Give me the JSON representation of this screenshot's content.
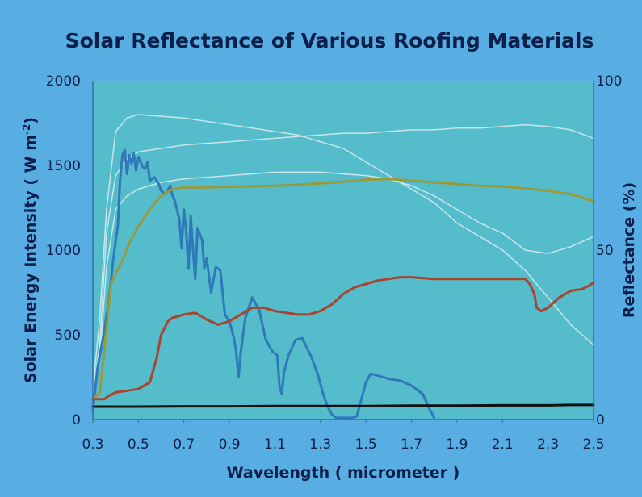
{
  "chart_data": {
    "type": "line",
    "title": "Solar Reflectance of Various Roofing Materials",
    "xlabel": "Wavelength ( micrometer )",
    "ylabel_left": "Solar Energy Intensity ( W m-2)",
    "ylabel_left_main": "Solar Energy Intensity ( W m",
    "ylabel_left_sup": "-2",
    "ylabel_left_end": ")",
    "ylabel_right": "Reflectance (%)",
    "xlim": [
      0.3,
      2.5
    ],
    "ylim_left": [
      0,
      2000
    ],
    "ylim_right": [
      0,
      100
    ],
    "x_ticks": [
      "0.3",
      "0.5",
      "0.7",
      "0.9",
      "1.1",
      "1.3",
      "1.5",
      "1.7",
      "1.9",
      "2.1",
      "2.3",
      "2.5"
    ],
    "y_left_ticks": [
      "0",
      "500",
      "1000",
      "1500",
      "2000"
    ],
    "y_right_ticks": [
      "0",
      "50",
      "100"
    ],
    "grid": false,
    "colors": {
      "background": "#58aee3",
      "plot_bg": "#55bccc",
      "title": "#0c1f4a",
      "solar": "#2f79b8",
      "green": "#9a9a3c",
      "brown": "#a8452c",
      "black": "#111111",
      "white": "#eef4f4"
    },
    "series": [
      {
        "axis": "left",
        "color": "#2f79b8",
        "x": [
          0.3,
          0.32,
          0.35,
          0.37,
          0.39,
          0.41,
          0.42,
          0.43,
          0.44,
          0.45,
          0.46,
          0.47,
          0.48,
          0.49,
          0.5,
          0.52,
          0.53,
          0.54,
          0.55,
          0.57,
          0.59,
          0.6,
          0.62,
          0.64,
          0.65,
          0.66,
          0.68,
          0.69,
          0.7,
          0.71,
          0.72,
          0.73,
          0.74,
          0.75,
          0.76,
          0.78,
          0.79,
          0.8,
          0.82,
          0.84,
          0.86,
          0.88,
          0.9,
          0.92,
          0.93,
          0.94,
          0.95,
          0.97,
          1.0,
          1.03,
          1.06,
          1.09,
          1.11,
          1.12,
          1.13,
          1.14,
          1.16,
          1.19,
          1.22,
          1.26,
          1.29,
          1.31,
          1.33,
          1.35,
          1.37,
          1.4,
          1.44,
          1.46,
          1.48,
          1.5,
          1.52,
          1.55,
          1.6,
          1.65,
          1.7,
          1.75,
          1.78,
          1.8
        ],
        "values": [
          50,
          300,
          520,
          700,
          950,
          1150,
          1420,
          1560,
          1590,
          1450,
          1560,
          1510,
          1570,
          1470,
          1550,
          1490,
          1480,
          1520,
          1410,
          1430,
          1390,
          1350,
          1330,
          1380,
          1320,
          1290,
          1180,
          1010,
          1240,
          1110,
          890,
          1200,
          1000,
          830,
          1130,
          1060,
          890,
          950,
          750,
          900,
          880,
          620,
          580,
          480,
          400,
          250,
          400,
          600,
          720,
          650,
          470,
          400,
          380,
          200,
          150,
          280,
          380,
          470,
          480,
          370,
          260,
          160,
          80,
          30,
          10,
          10,
          10,
          20,
          120,
          220,
          270,
          260,
          240,
          230,
          200,
          150,
          60,
          10
        ]
      },
      {
        "axis": "right",
        "color": "#9a9a3c",
        "x": [
          0.3,
          0.33,
          0.35,
          0.38,
          0.4,
          0.43,
          0.46,
          0.5,
          0.55,
          0.6,
          0.65,
          0.7,
          0.75,
          0.8,
          0.9,
          1.0,
          1.1,
          1.2,
          1.3,
          1.4,
          1.5,
          1.6,
          1.7,
          1.8,
          1.9,
          2.0,
          2.1,
          2.2,
          2.3,
          2.4,
          2.45,
          2.48,
          2.5
        ],
        "values": [
          6,
          8,
          20,
          40,
          43,
          47,
          52,
          57,
          62,
          66,
          68,
          68.5,
          68.5,
          68.5,
          68.7,
          68.8,
          69,
          69.3,
          69.7,
          70.2,
          70.8,
          71,
          70.5,
          70,
          69.5,
          69,
          68.8,
          68.2,
          67.5,
          66.5,
          65.5,
          64.8,
          64.5
        ]
      },
      {
        "axis": "right",
        "color": "#a8452c",
        "x": [
          0.3,
          0.35,
          0.37,
          0.4,
          0.45,
          0.5,
          0.55,
          0.58,
          0.6,
          0.63,
          0.65,
          0.7,
          0.75,
          0.8,
          0.85,
          0.9,
          0.95,
          1.0,
          1.05,
          1.1,
          1.15,
          1.2,
          1.25,
          1.3,
          1.35,
          1.4,
          1.45,
          1.5,
          1.55,
          1.6,
          1.65,
          1.7,
          1.8,
          1.9,
          2.0,
          2.1,
          2.2,
          2.22,
          2.24,
          2.25,
          2.27,
          2.3,
          2.35,
          2.4,
          2.45,
          2.48,
          2.5
        ],
        "values": [
          6,
          6,
          7,
          8,
          8.5,
          9,
          11,
          18,
          25,
          29,
          30,
          31,
          31.5,
          29.5,
          28,
          29,
          31,
          33,
          33,
          32,
          31.5,
          31,
          31,
          32,
          34,
          37,
          39,
          40,
          41,
          41.5,
          42,
          42,
          41.5,
          41.5,
          41.5,
          41.5,
          41.5,
          40,
          37,
          33,
          32,
          33,
          36,
          38,
          38.5,
          39.5,
          40.5
        ]
      },
      {
        "axis": "right",
        "color": "#111111",
        "x": [
          0.3,
          0.5,
          0.7,
          0.9,
          1.1,
          1.3,
          1.5,
          1.7,
          1.9,
          2.1,
          2.3,
          2.4,
          2.5
        ],
        "values": [
          3.8,
          3.8,
          3.9,
          3.9,
          4.0,
          4.0,
          4.0,
          4.1,
          4.1,
          4.2,
          4.2,
          4.3,
          4.3
        ]
      },
      {
        "axis": "right",
        "color": "#eef4f4",
        "x": [
          0.3,
          0.33,
          0.36,
          0.4,
          0.45,
          0.5,
          0.6,
          0.7,
          0.8,
          0.9,
          1.0,
          1.1,
          1.2,
          1.3,
          1.4,
          1.5,
          1.6,
          1.7,
          1.8,
          1.9,
          2.0,
          2.1,
          2.2,
          2.3,
          2.4,
          2.5
        ],
        "values": [
          8,
          22,
          55,
          72,
          77,
          79,
          80,
          81,
          81.5,
          82,
          82.5,
          83,
          83.5,
          84,
          84.5,
          84.5,
          85,
          85.5,
          85.5,
          86,
          86,
          86.5,
          87,
          86.5,
          85.5,
          83
        ]
      },
      {
        "axis": "right",
        "color": "#eef4f4",
        "x": [
          0.3,
          0.33,
          0.36,
          0.4,
          0.45,
          0.5,
          0.6,
          0.7,
          0.8,
          0.9,
          1.0,
          1.1,
          1.2,
          1.3,
          1.4,
          1.5,
          1.6,
          1.7,
          1.8,
          1.9,
          2.0,
          2.1,
          2.2,
          2.25,
          2.3,
          2.4,
          2.5
        ],
        "values": [
          9,
          30,
          62,
          85,
          89,
          90,
          89.5,
          89,
          88,
          87,
          86,
          85,
          84,
          82,
          80,
          76,
          72,
          68,
          64,
          58,
          54,
          50,
          44,
          40,
          36,
          28,
          22
        ]
      },
      {
        "axis": "right",
        "color": "#eef4f4",
        "x": [
          0.3,
          0.33,
          0.36,
          0.4,
          0.45,
          0.5,
          0.6,
          0.7,
          0.8,
          0.9,
          1.0,
          1.1,
          1.2,
          1.3,
          1.4,
          1.5,
          1.6,
          1.7,
          1.8,
          1.9,
          2.0,
          2.1,
          2.2,
          2.3,
          2.4,
          2.5
        ],
        "values": [
          7,
          18,
          45,
          62,
          66,
          68,
          70,
          71,
          71.5,
          72,
          72.5,
          73,
          73,
          73,
          72.5,
          72,
          71,
          69,
          66,
          62,
          58,
          55,
          50,
          49,
          51,
          54
        ]
      }
    ]
  }
}
